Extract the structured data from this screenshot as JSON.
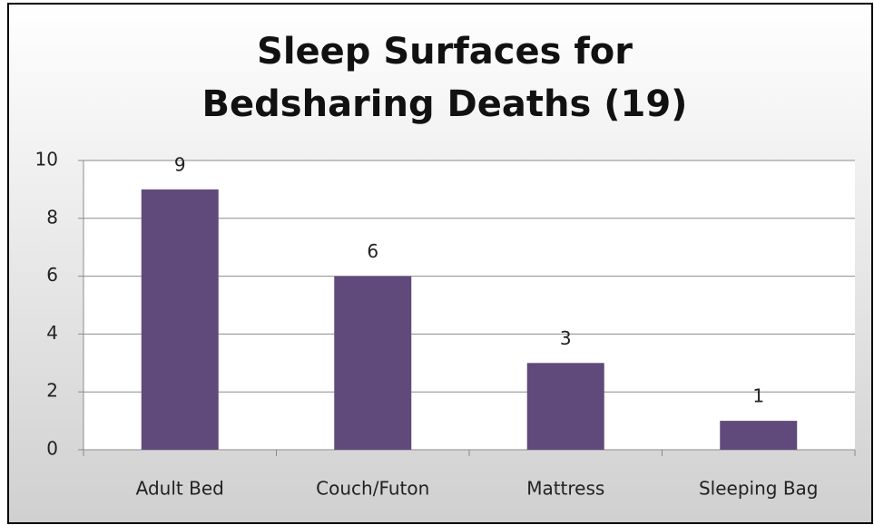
{
  "chart_data": {
    "type": "bar",
    "title": "Sleep Surfaces for Bedsharing Deaths (19)",
    "categories": [
      "Adult Bed",
      "Couch/Futon",
      "Mattress",
      "Sleeping Bag"
    ],
    "values": [
      9,
      6,
      3,
      1
    ],
    "color": "#604a7b",
    "ylim": [
      0,
      10
    ],
    "yticks": [
      0,
      2,
      4,
      6,
      8,
      10
    ],
    "grid": true
  }
}
